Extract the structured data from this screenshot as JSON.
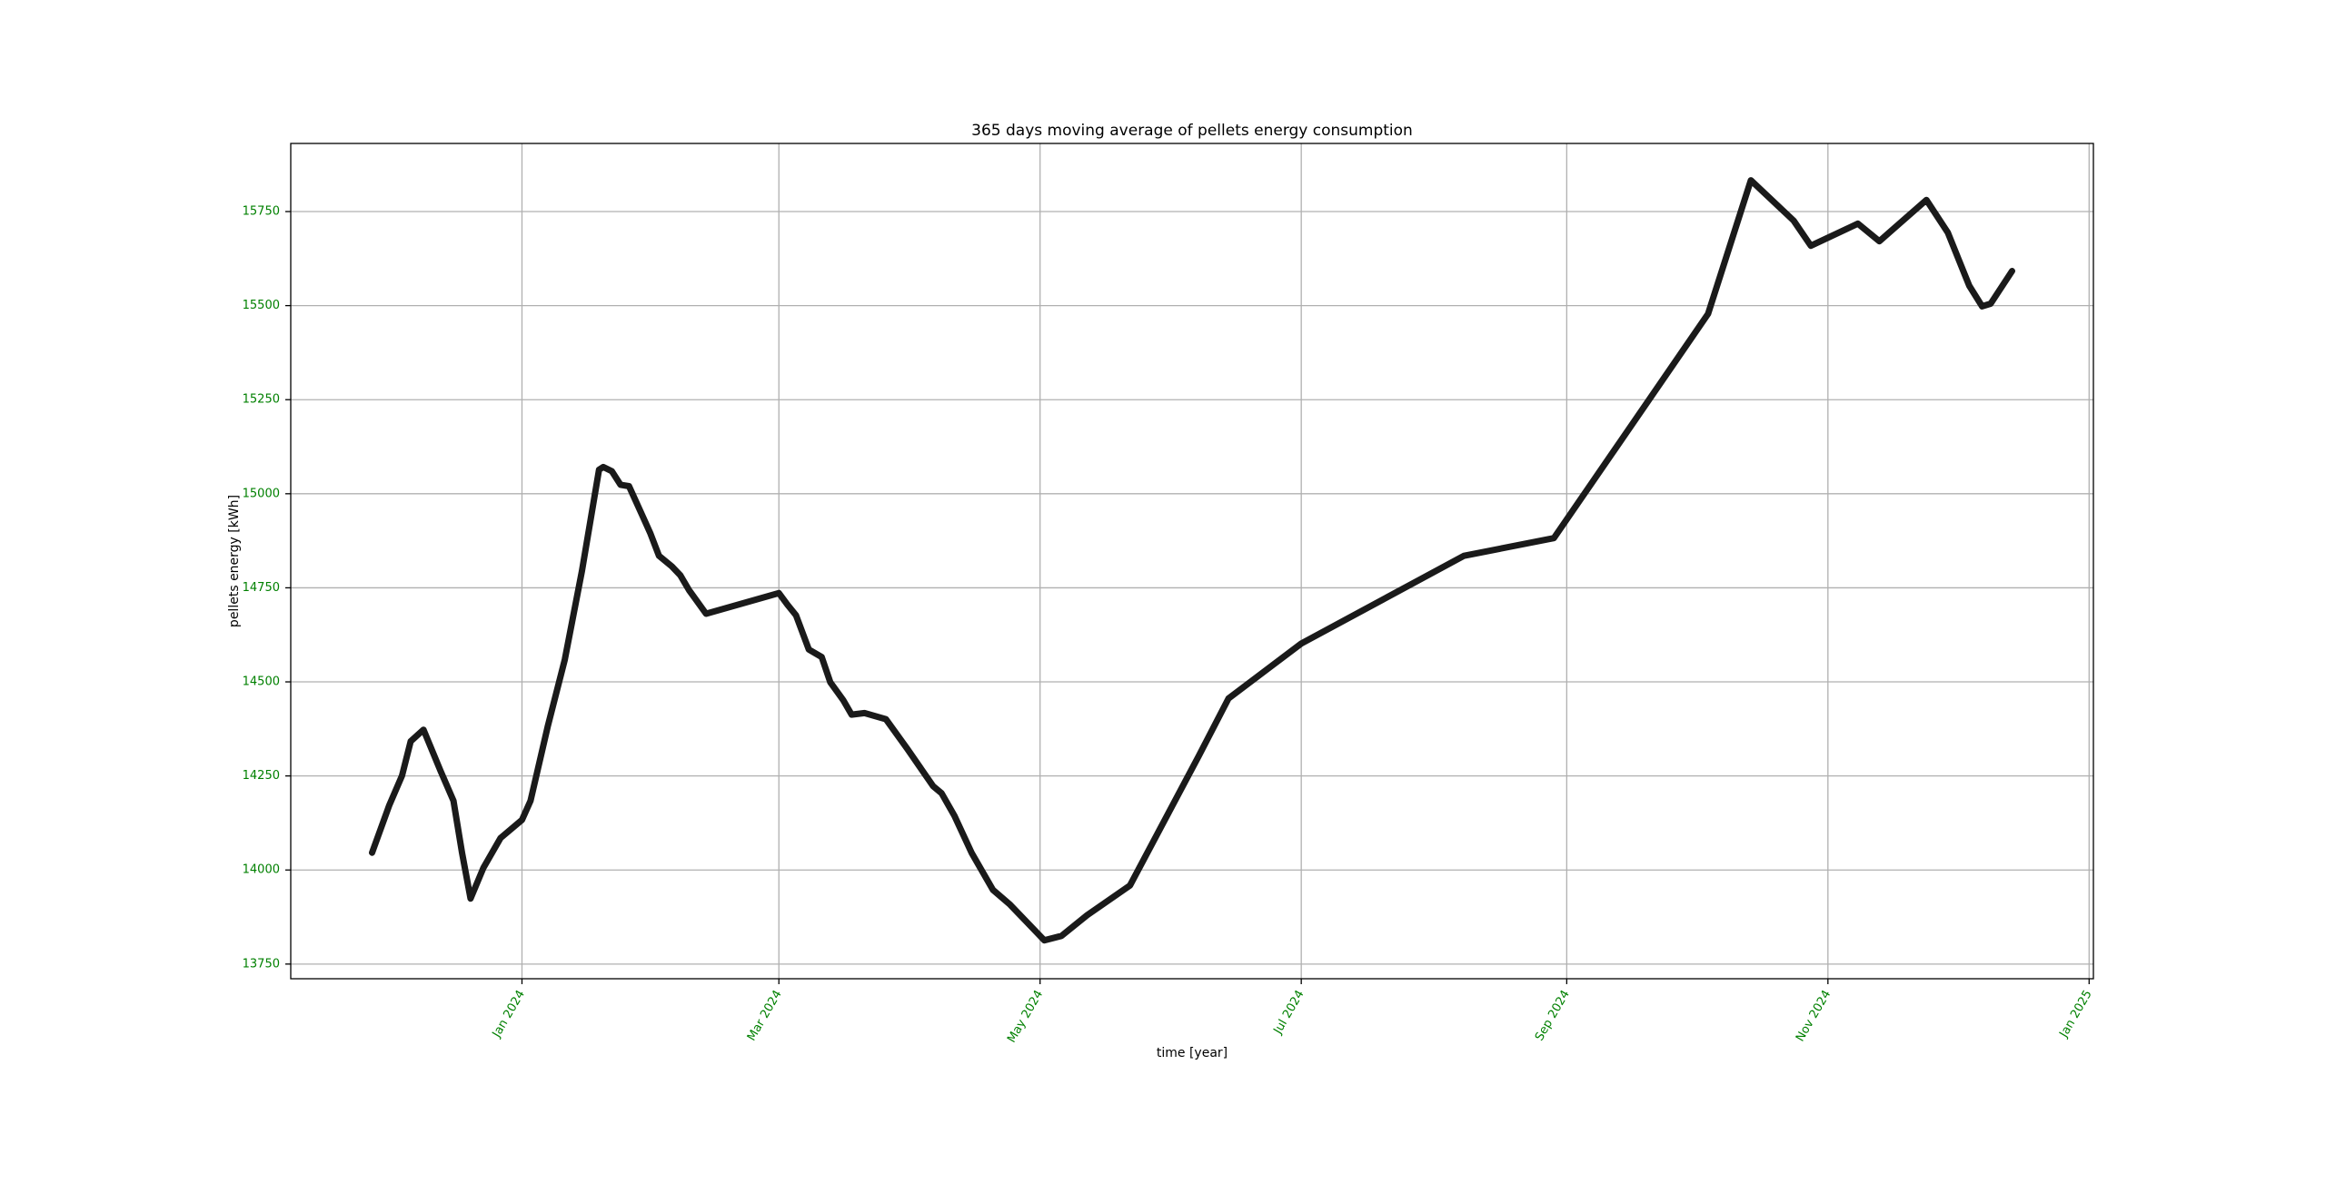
{
  "chart_data": {
    "type": "line",
    "title": "365 days moving average of pellets energy consumption",
    "xlabel": "time [year]",
    "ylabel": "pellets energy [kWh]",
    "x": [
      "2023-11-27",
      "2023-12-01",
      "2023-12-04",
      "2023-12-06",
      "2023-12-09",
      "2023-12-13",
      "2023-12-16",
      "2023-12-18",
      "2023-12-20",
      "2023-12-23",
      "2023-12-27",
      "2024-01-01",
      "2024-01-03",
      "2024-01-07",
      "2024-01-11",
      "2024-01-15",
      "2024-01-19",
      "2024-01-20",
      "2024-01-22",
      "2024-01-24",
      "2024-01-26",
      "2024-01-29",
      "2024-01-31",
      "2024-02-02",
      "2024-02-05",
      "2024-02-07",
      "2024-02-09",
      "2024-02-13",
      "2024-03-01",
      "2024-03-03",
      "2024-03-05",
      "2024-03-08",
      "2024-03-11",
      "2024-03-13",
      "2024-03-16",
      "2024-03-18",
      "2024-03-21",
      "2024-03-26",
      "2024-03-31",
      "2024-04-06",
      "2024-04-08",
      "2024-04-11",
      "2024-04-15",
      "2024-04-20",
      "2024-04-24",
      "2024-05-02",
      "2024-05-06",
      "2024-05-12",
      "2024-05-22",
      "2024-06-07",
      "2024-06-14",
      "2024-07-01",
      "2024-08-08",
      "2024-08-29",
      "2024-10-04",
      "2024-10-14",
      "2024-10-24",
      "2024-10-28",
      "2024-11-08",
      "2024-11-13",
      "2024-11-24",
      "2024-11-29",
      "2024-12-04",
      "2024-12-07",
      "2024-12-09",
      "2024-12-14"
    ],
    "values": [
      14046,
      14172,
      14251,
      14342,
      14373,
      14263,
      14184,
      14046,
      13924,
      14006,
      14085,
      14133,
      14184,
      14381,
      14559,
      14795,
      15064,
      15071,
      15060,
      15024,
      15020,
      14945,
      14894,
      14835,
      14807,
      14783,
      14744,
      14681,
      14736,
      14705,
      14677,
      14586,
      14566,
      14499,
      14452,
      14413,
      14417,
      14401,
      14322,
      14223,
      14204,
      14144,
      14046,
      13947,
      13908,
      13813,
      13825,
      13880,
      13959,
      14302,
      14456,
      14602,
      14835,
      14882,
      15478,
      15833,
      15726,
      15659,
      15718,
      15671,
      15781,
      15694,
      15553,
      15498,
      15505,
      15592
    ],
    "color": "#1a1a1a",
    "xlim": [
      "2023-11-08",
      "2025-01-02"
    ],
    "xticks": [
      {
        "value": "2024-01-01",
        "label": "Jan 2024"
      },
      {
        "value": "2024-03-01",
        "label": "Mar 2024"
      },
      {
        "value": "2024-05-01",
        "label": "May 2024"
      },
      {
        "value": "2024-07-01",
        "label": "Jul 2024"
      },
      {
        "value": "2024-09-01",
        "label": "Sep 2024"
      },
      {
        "value": "2024-11-01",
        "label": "Nov 2024"
      },
      {
        "value": "2025-01-01",
        "label": "Jan 2025"
      }
    ],
    "ylim": [
      13711,
      15931
    ],
    "yticks": [
      13750,
      14000,
      14250,
      14500,
      14750,
      15000,
      15250,
      15500,
      15750
    ],
    "tick_color": "#008000",
    "grid": true
  }
}
